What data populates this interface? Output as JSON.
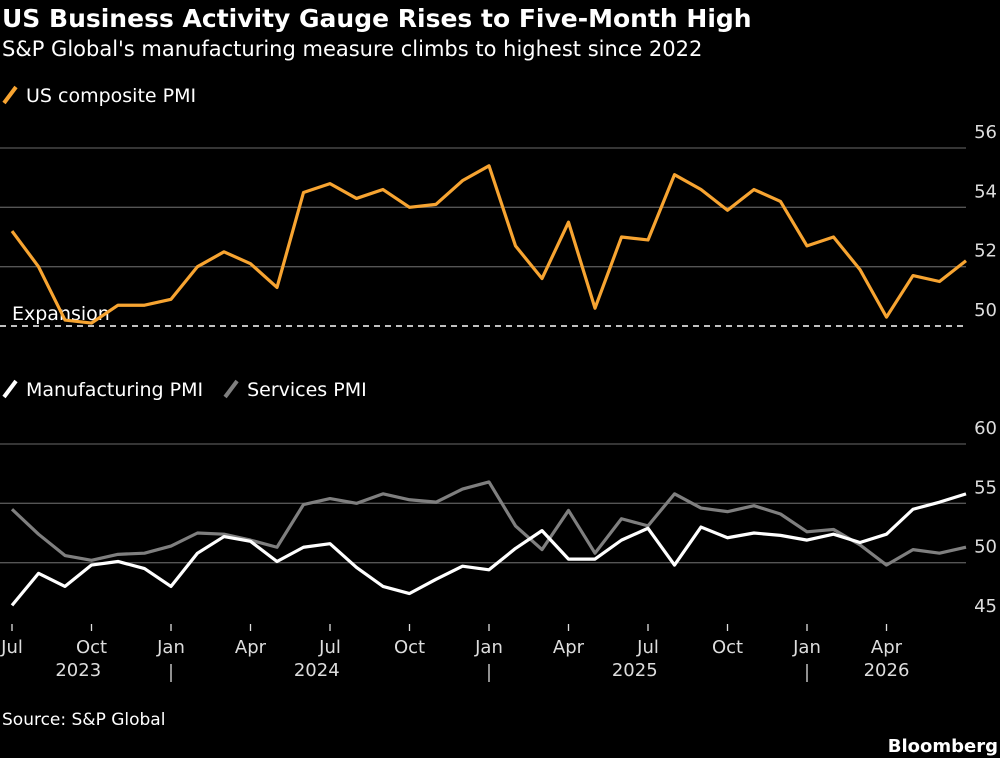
{
  "chart_data": [
    {
      "type": "line",
      "title": "US Business Activity Gauge Rises to Five-Month High",
      "subtitle": "S&P Global's manufacturing measure climbs to highest since 2022",
      "annotation": "Expansion",
      "reference_line": 50,
      "ylim": [
        50,
        56
      ],
      "yticks": [
        50,
        52,
        54,
        56
      ],
      "grid": true,
      "series": [
        {
          "name": "US composite PMI",
          "color": "#f7a431",
          "values": [
            53.2,
            52.0,
            50.2,
            50.1,
            50.7,
            50.7,
            50.9,
            52.0,
            52.5,
            52.1,
            51.3,
            54.5,
            54.8,
            54.3,
            54.6,
            54.0,
            54.1,
            54.9,
            55.4,
            52.7,
            51.6,
            53.5,
            50.6,
            53.0,
            52.9,
            55.1,
            54.6,
            53.9,
            54.6,
            54.2,
            52.7,
            53.0,
            51.9,
            50.3,
            51.7,
            51.5,
            52.2
          ]
        }
      ]
    },
    {
      "type": "line",
      "categories": [
        "Jul",
        null,
        null,
        "Oct",
        null,
        null,
        "Jan",
        null,
        null,
        "Apr",
        null,
        null,
        "Jul",
        null,
        null,
        "Oct",
        null,
        null,
        "Jan",
        null,
        null,
        "Apr",
        null,
        null,
        "Jul",
        null,
        null,
        "Oct",
        null,
        null,
        "Jan",
        null,
        null,
        "Apr",
        null,
        null,
        null
      ],
      "years": [
        "2023",
        "2024",
        "2025",
        "2026"
      ],
      "ylim": [
        45,
        60
      ],
      "yticks": [
        45,
        50,
        55,
        60
      ],
      "grid": true,
      "series": [
        {
          "name": "Manufacturing PMI",
          "color": "#ffffff",
          "values": [
            46.4,
            49.1,
            48.0,
            49.8,
            50.1,
            49.5,
            48.0,
            50.8,
            52.2,
            51.8,
            50.1,
            51.3,
            51.6,
            49.6,
            48.0,
            47.4,
            48.6,
            49.7,
            49.4,
            51.2,
            52.7,
            50.3,
            50.3,
            51.9,
            52.9,
            49.8,
            53.0,
            52.1,
            52.5,
            52.3,
            51.9,
            52.4,
            51.7,
            52.4,
            54.5,
            55.1,
            55.8
          ]
        },
        {
          "name": "Services PMI",
          "color": "#7f7f7f",
          "values": [
            54.5,
            52.4,
            50.6,
            50.2,
            50.7,
            50.8,
            51.4,
            52.5,
            52.4,
            51.9,
            51.3,
            54.9,
            55.4,
            55.0,
            55.8,
            55.3,
            55.1,
            56.2,
            56.8,
            53.1,
            51.1,
            54.4,
            50.8,
            53.7,
            53.1,
            55.8,
            54.6,
            54.3,
            54.8,
            54.1,
            52.6,
            52.8,
            51.5,
            49.8,
            51.1,
            50.8,
            51.3
          ]
        }
      ]
    }
  ],
  "source": "Source: S&P Global",
  "brand": "Bloomberg"
}
